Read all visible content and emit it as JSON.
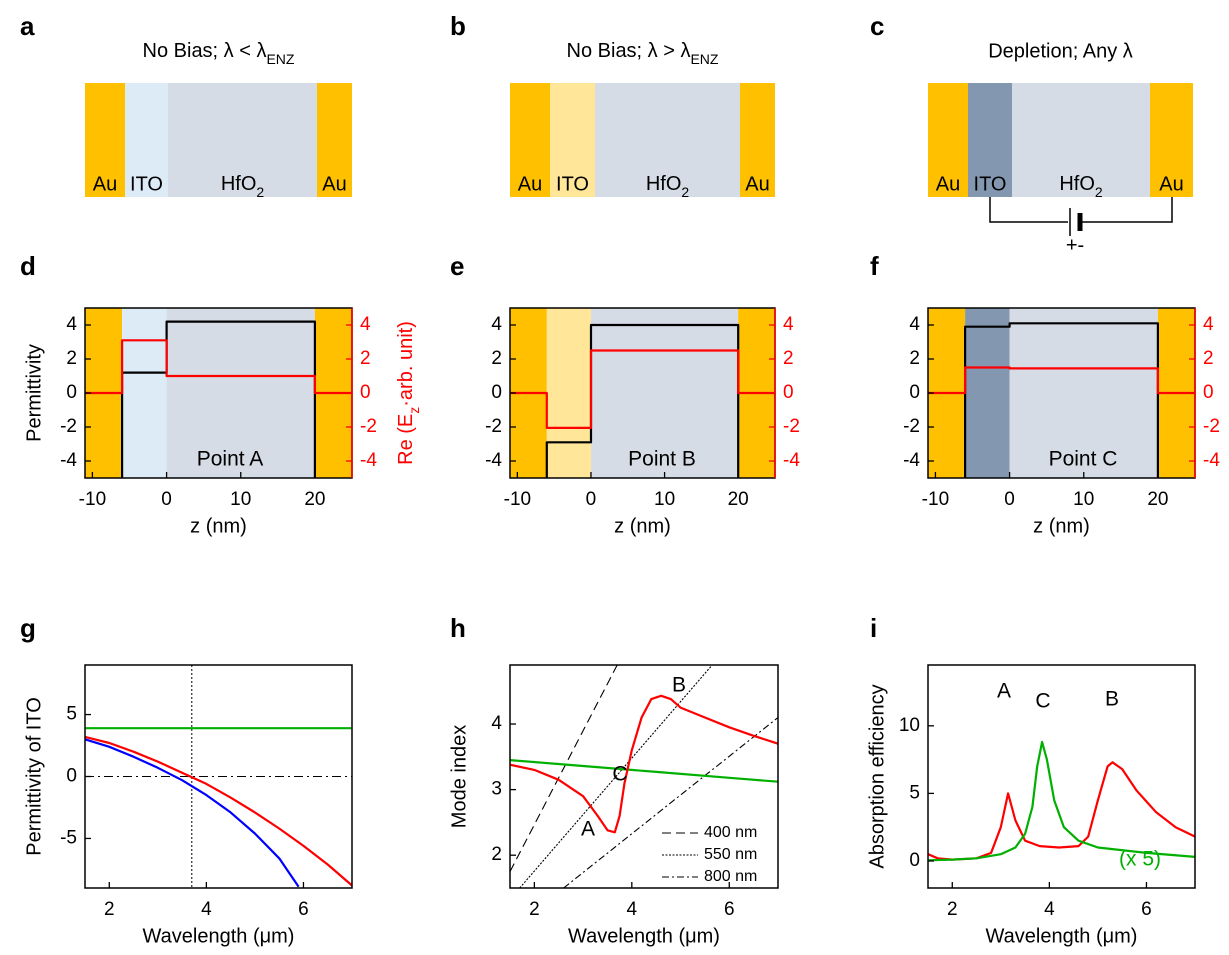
{
  "panel_labels": [
    "a",
    "b",
    "c",
    "d",
    "e",
    "f",
    "g",
    "h",
    "i"
  ],
  "diagrams": [
    {
      "title": [
        "No Bias; λ < λ",
        "ENZ"
      ],
      "layers": [
        {
          "label": "Au",
          "color": "#FFC000"
        },
        {
          "label": "ITO",
          "color": "#DDEBF7"
        },
        {
          "label": [
            "HfO",
            "2"
          ],
          "color": "#D6DCE5"
        },
        {
          "label": "Au",
          "color": "#FFC000"
        }
      ]
    },
    {
      "title": [
        "No Bias; λ > λ",
        "ENZ"
      ],
      "layers": [
        {
          "label": "Au",
          "color": "#FFC000"
        },
        {
          "label": "ITO",
          "color": "#FFE699"
        },
        {
          "label": [
            "HfO",
            "2"
          ],
          "color": "#D6DCE5"
        },
        {
          "label": "Au",
          "color": "#FFC000"
        }
      ]
    },
    {
      "title": "Depletion; Any  λ",
      "layers": [
        {
          "label": "Au",
          "color": "#FFC000"
        },
        {
          "label": "ITO",
          "color": "#8497B0"
        },
        {
          "label": [
            "HfO",
            "2"
          ],
          "color": "#D6DCE5"
        },
        {
          "label": "Au",
          "color": "#FFC000"
        }
      ],
      "polarity": "+-"
    }
  ],
  "chart_data": [
    {
      "type": "line",
      "xlabel": "z (nm)",
      "ylabel": "Permittivity",
      "y2label": [
        "Re (E",
        "z",
        "·arb. unit)"
      ],
      "xlim": [
        -11,
        25
      ],
      "xticks": [
        -10,
        0,
        10,
        20
      ],
      "ylim": [
        -5,
        5
      ],
      "yticks": [
        -4,
        -2,
        0,
        2,
        4
      ],
      "y2lim": [
        -5,
        5
      ],
      "y2ticks": [
        -4,
        -2,
        0,
        2,
        4
      ],
      "y2color": "#FF0000",
      "regions": [
        {
          "from": -11,
          "to": -6,
          "color": "#FFC000"
        },
        {
          "from": -6,
          "to": 0,
          "color": "#DDEBF7"
        },
        {
          "from": 0,
          "to": 20,
          "color": "#D6DCE5"
        },
        {
          "from": 20,
          "to": 25,
          "color": "#FFC000"
        }
      ],
      "series": [
        {
          "color": "#000000",
          "x": [
            -6,
            -6,
            0,
            0,
            20,
            20
          ],
          "values": [
            -5,
            1.2,
            1.2,
            4.2,
            4.2,
            -5
          ]
        },
        {
          "color": "#FF0000",
          "axis": "y2",
          "x": [
            -11,
            -6,
            -6,
            0,
            0,
            20,
            20,
            25
          ],
          "values": [
            0,
            0,
            3.1,
            3.1,
            1,
            1,
            0,
            0
          ]
        }
      ],
      "annotations": [
        {
          "text": "Point A",
          "color": "#000000"
        }
      ]
    },
    {
      "type": "line",
      "xlabel": "z (nm)",
      "xlim": [
        -11,
        25
      ],
      "xticks": [
        -10,
        0,
        10,
        20
      ],
      "ylim": [
        -5,
        5
      ],
      "yticks": [
        -4,
        -2,
        0,
        2,
        4
      ],
      "y2lim": [
        -5,
        5
      ],
      "y2ticks": [
        -4,
        -2,
        0,
        2,
        4
      ],
      "y2color": "#FF0000",
      "regions": [
        {
          "from": -11,
          "to": -6,
          "color": "#FFC000"
        },
        {
          "from": -6,
          "to": 0,
          "color": "#FFE699"
        },
        {
          "from": 0,
          "to": 20,
          "color": "#D6DCE5"
        },
        {
          "from": 20,
          "to": 25,
          "color": "#FFC000"
        }
      ],
      "series": [
        {
          "color": "#000000",
          "x": [
            -6,
            -6,
            0,
            0,
            20,
            20
          ],
          "values": [
            -5,
            -2.9,
            -2.9,
            4.0,
            4.0,
            -5
          ]
        },
        {
          "color": "#FF0000",
          "axis": "y2",
          "x": [
            -11,
            -6,
            -6,
            0,
            0,
            20,
            20,
            25
          ],
          "values": [
            0,
            0,
            -2.05,
            -2.05,
            2.5,
            2.5,
            0,
            0
          ]
        }
      ],
      "annotations": [
        {
          "text": "Point B",
          "color": "#000000"
        }
      ]
    },
    {
      "type": "line",
      "xlabel": "z (nm)",
      "xlim": [
        -11,
        25
      ],
      "xticks": [
        -10,
        0,
        10,
        20
      ],
      "ylim": [
        -5,
        5
      ],
      "yticks": [
        -4,
        -2,
        0,
        2,
        4
      ],
      "y2lim": [
        -5,
        5
      ],
      "y2ticks": [
        -4,
        -2,
        0,
        2,
        4
      ],
      "y2color": "#FF0000",
      "regions": [
        {
          "from": -11,
          "to": -6,
          "color": "#FFC000"
        },
        {
          "from": -6,
          "to": 0,
          "color": "#8497B0"
        },
        {
          "from": 0,
          "to": 20,
          "color": "#D6DCE5"
        },
        {
          "from": 20,
          "to": 25,
          "color": "#FFC000"
        }
      ],
      "series": [
        {
          "color": "#000000",
          "x": [
            -6,
            -6,
            0,
            0,
            20,
            20
          ],
          "values": [
            -5,
            3.9,
            3.9,
            4.1,
            4.1,
            -5
          ]
        },
        {
          "color": "#FF0000",
          "axis": "y2",
          "x": [
            -11,
            -6,
            -6,
            0,
            0,
            20,
            20,
            25
          ],
          "values": [
            0,
            0,
            1.5,
            1.5,
            1.45,
            1.45,
            0,
            0
          ]
        }
      ],
      "annotations": [
        {
          "text": "Point C",
          "color": "#000000"
        }
      ]
    },
    {
      "type": "line",
      "xlabel": "Wavelength (μm)",
      "ylabel": "Permittivity of ITO",
      "xlim": [
        1.5,
        7
      ],
      "xticks": [
        2,
        4,
        6
      ],
      "ylim": [
        -9,
        9
      ],
      "yticks": [
        -5,
        0,
        5
      ],
      "hlines": [
        {
          "value": 0,
          "dash": "9,4,2,4"
        }
      ],
      "vlines": [
        {
          "value": 3.7,
          "dash": "2,2"
        }
      ],
      "series": [
        {
          "color": "#00B000",
          "x": [
            1.5,
            7
          ],
          "values": [
            3.9,
            3.9
          ]
        },
        {
          "color": "#FF0000",
          "x": [
            1.5,
            2,
            2.5,
            3,
            3.5,
            4,
            4.5,
            5,
            5.5,
            6,
            6.5,
            7
          ],
          "values": [
            3.2,
            2.7,
            2.0,
            1.2,
            0.3,
            -0.6,
            -1.7,
            -2.9,
            -4.2,
            -5.6,
            -7.1,
            -8.8
          ]
        },
        {
          "color": "#0000FF",
          "x": [
            1.5,
            2,
            2.5,
            3,
            3.5,
            4,
            4.5,
            5,
            5.5,
            5.9
          ],
          "values": [
            3.0,
            2.4,
            1.6,
            0.7,
            -0.3,
            -1.5,
            -2.9,
            -4.6,
            -6.6,
            -8.9
          ]
        }
      ]
    },
    {
      "type": "line",
      "xlabel": "Wavelength (μm)",
      "ylabel": "Mode index",
      "xlim": [
        1.5,
        7
      ],
      "xticks": [
        2,
        4,
        6
      ],
      "ylim": [
        1.5,
        4.9
      ],
      "yticks": [
        2,
        3,
        4
      ],
      "series": [
        {
          "name": "400 nm",
          "color": "#000000",
          "dash": "9,5",
          "thin": true,
          "x": [
            1.5,
            3.7
          ],
          "values": [
            1.75,
            4.9
          ]
        },
        {
          "name": "550 nm",
          "color": "#000000",
          "dash": "2,1.5",
          "thin": true,
          "x": [
            1.7,
            5.65
          ],
          "values": [
            1.5,
            4.9
          ]
        },
        {
          "name": "800 nm",
          "color": "#000000",
          "dash": "7,3,2,3",
          "thin": true,
          "x": [
            2.6,
            7
          ],
          "values": [
            1.5,
            4.1
          ]
        },
        {
          "color": "#00B000",
          "x": [
            1.5,
            3,
            4.5,
            6,
            7
          ],
          "values": [
            3.45,
            3.36,
            3.27,
            3.18,
            3.12
          ]
        },
        {
          "color": "#FF0000",
          "x": [
            1.5,
            2,
            2.5,
            3,
            3.3,
            3.5,
            3.65,
            3.75,
            3.85,
            4,
            4.2,
            4.4,
            4.6,
            4.8,
            5,
            5.5,
            6,
            6.5,
            7
          ],
          "values": [
            3.38,
            3.3,
            3.15,
            2.9,
            2.6,
            2.38,
            2.35,
            2.6,
            3.1,
            3.6,
            4.1,
            4.38,
            4.43,
            4.38,
            4.25,
            4.1,
            3.95,
            3.82,
            3.7
          ]
        }
      ],
      "annotations": [
        {
          "text": "A",
          "color": "#000000"
        },
        {
          "text": "C",
          "color": "#000000"
        },
        {
          "text": "B",
          "color": "#000000"
        }
      ]
    },
    {
      "type": "line",
      "xlabel": "Wavelength (μm)",
      "ylabel": "Absorption efficiency",
      "xlim": [
        1.5,
        7
      ],
      "xticks": [
        2,
        4,
        6
      ],
      "ylim": [
        -2,
        14.5
      ],
      "yticks": [
        0,
        5,
        10
      ],
      "series": [
        {
          "color": "#FF0000",
          "x": [
            1.5,
            1.7,
            2,
            2.5,
            2.8,
            3.0,
            3.15,
            3.3,
            3.5,
            3.8,
            4.2,
            4.6,
            4.8,
            5.0,
            5.2,
            5.3,
            5.5,
            5.8,
            6.2,
            6.6,
            7
          ],
          "values": [
            0.5,
            0.2,
            0.1,
            0.2,
            0.6,
            2.5,
            5.0,
            3.0,
            1.5,
            1.1,
            1.0,
            1.1,
            1.8,
            4.5,
            7.0,
            7.3,
            6.8,
            5.2,
            3.6,
            2.5,
            1.8
          ]
        },
        {
          "color": "#00B000",
          "x": [
            1.5,
            2,
            2.5,
            3,
            3.3,
            3.5,
            3.65,
            3.75,
            3.85,
            3.95,
            4.1,
            4.3,
            4.6,
            5,
            6,
            7
          ],
          "values": [
            0.05,
            0.1,
            0.2,
            0.5,
            1.0,
            2.0,
            4.0,
            7.0,
            8.8,
            7.5,
            4.5,
            2.5,
            1.5,
            1.0,
            0.6,
            0.3
          ]
        }
      ],
      "annotations": [
        {
          "text": "A",
          "color": "#000000"
        },
        {
          "text": "C",
          "color": "#000000"
        },
        {
          "text": "B",
          "color": "#000000"
        },
        {
          "text": "(x 5)",
          "color": "#00B000"
        }
      ]
    }
  ]
}
